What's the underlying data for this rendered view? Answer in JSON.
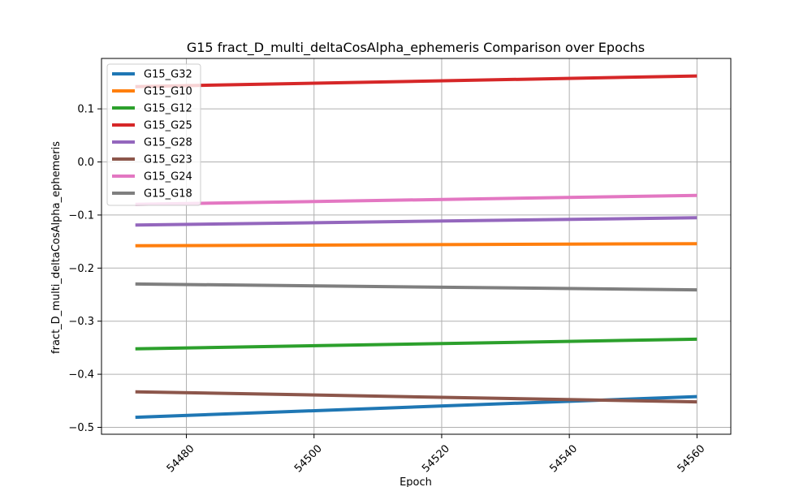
{
  "chart_data": {
    "type": "line",
    "title": "G15 fract_D_multi_deltaCosAlpha_ephemeris Comparison over Epochs",
    "xlabel": "Epoch",
    "ylabel": "fract_D_multi_deltaCosAlpha_ephemeris",
    "x": [
      54472,
      54560
    ],
    "xlim": [
      54466.7,
      54565.3
    ],
    "ylim": [
      -0.513,
      0.195
    ],
    "xticks": [
      54480,
      54500,
      54520,
      54540,
      54560
    ],
    "yticks": [
      -0.5,
      -0.4,
      -0.3,
      -0.2,
      -0.1,
      0.0,
      0.1
    ],
    "xtick_labels": [
      "54480",
      "54500",
      "54520",
      "54540",
      "54560"
    ],
    "ytick_labels": [
      "−0.5",
      "−0.4",
      "−0.3",
      "−0.2",
      "−0.1",
      "0.0",
      "0.1"
    ],
    "grid": true,
    "legend_position": "upper-left",
    "series": [
      {
        "name": "G15_G32",
        "color": "#1f77b4",
        "values": [
          -0.481,
          -0.442
        ]
      },
      {
        "name": "G15_G10",
        "color": "#ff7f0e",
        "values": [
          -0.158,
          -0.154
        ]
      },
      {
        "name": "G15_G12",
        "color": "#2ca02c",
        "values": [
          -0.352,
          -0.334
        ]
      },
      {
        "name": "G15_G25",
        "color": "#d62728",
        "values": [
          0.142,
          0.162
        ]
      },
      {
        "name": "G15_G28",
        "color": "#9467bd",
        "values": [
          -0.119,
          -0.105
        ]
      },
      {
        "name": "G15_G23",
        "color": "#8c564b",
        "values": [
          -0.433,
          -0.452
        ]
      },
      {
        "name": "G15_G24",
        "color": "#e377c2",
        "values": [
          -0.08,
          -0.063
        ]
      },
      {
        "name": "G15_G18",
        "color": "#7f7f7f",
        "values": [
          -0.23,
          -0.241
        ]
      }
    ]
  }
}
